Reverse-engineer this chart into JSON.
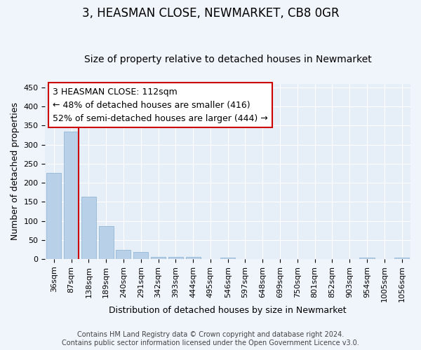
{
  "title": "3, HEASMAN CLOSE, NEWMARKET, CB8 0GR",
  "subtitle": "Size of property relative to detached houses in Newmarket",
  "xlabel": "Distribution of detached houses by size in Newmarket",
  "ylabel": "Number of detached properties",
  "categories": [
    "36sqm",
    "87sqm",
    "138sqm",
    "189sqm",
    "240sqm",
    "291sqm",
    "342sqm",
    "393sqm",
    "444sqm",
    "495sqm",
    "546sqm",
    "597sqm",
    "648sqm",
    "699sqm",
    "750sqm",
    "801sqm",
    "852sqm",
    "903sqm",
    "954sqm",
    "1005sqm",
    "1056sqm"
  ],
  "values": [
    226,
    335,
    163,
    87,
    23,
    19,
    6,
    5,
    6,
    0,
    3,
    0,
    0,
    0,
    0,
    0,
    0,
    0,
    3,
    0,
    3
  ],
  "bar_color": "#b8d0e8",
  "vline_x": 1.0,
  "vline_color": "#cc0000",
  "annotation_lines": [
    "3 HEASMAN CLOSE: 112sqm",
    "← 48% of detached houses are smaller (416)",
    "52% of semi-detached houses are larger (444) →"
  ],
  "ylim": [
    0,
    460
  ],
  "yticks": [
    0,
    50,
    100,
    150,
    200,
    250,
    300,
    350,
    400,
    450
  ],
  "footer_text": "Contains HM Land Registry data © Crown copyright and database right 2024.\nContains public sector information licensed under the Open Government Licence v3.0.",
  "title_fontsize": 12,
  "subtitle_fontsize": 10,
  "axis_label_fontsize": 9,
  "tick_fontsize": 8,
  "background_color": "#f0f4fb",
  "plot_bg_color": "#e6eef8",
  "grid_color": "#ffffff",
  "annotation_fontsize": 9
}
